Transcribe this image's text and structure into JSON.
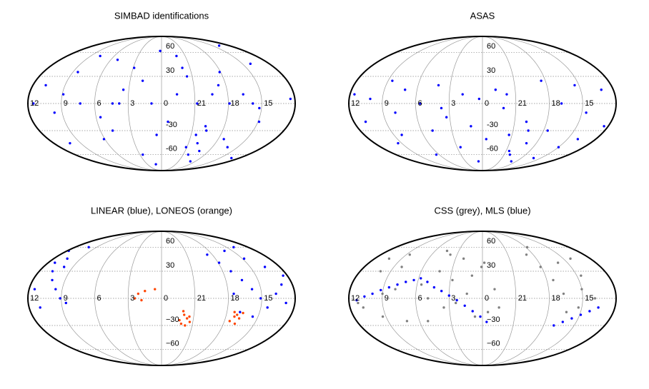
{
  "chart_data": [
    {
      "type": "scatter",
      "projection": "mollweide",
      "title": "SIMBAD identifications",
      "xticks": [
        12,
        9,
        6,
        3,
        0,
        21,
        18,
        15
      ],
      "yticks": [
        60,
        30,
        {
          "value": -30,
          "label": "-30"
        },
        {
          "value": -60,
          "label": "-60"
        }
      ],
      "series": [
        {
          "color": "#0000ff",
          "x": [
            11.5,
            10.8,
            9.7,
            8.5,
            7.3,
            6.1,
            5.2,
            4.4,
            3.5,
            2.6,
            1.8,
            0.9,
            0.2,
            23.4,
            22.6,
            21.8,
            21.1,
            20.5,
            20.0,
            19.6,
            19.2,
            18.7,
            18.1,
            17.4,
            16.6,
            15.8,
            14.9,
            14.1,
            13.2,
            12.4,
            20.3,
            19.8,
            19.4,
            20.8,
            21.5,
            18.9,
            17.9,
            16.2,
            1.2,
            4.8,
            7.8,
            10.2,
            2.9,
            5.6,
            8.9,
            3.8,
            0.5,
            22.1,
            13.8,
            15.2
          ],
          "values": [
            0,
            20,
            -10,
            35,
            0,
            -40,
            50,
            0,
            15,
            -60,
            25,
            0,
            62,
            -20,
            10,
            40,
            -50,
            -35,
            -45,
            -30,
            -55,
            20,
            35,
            -40,
            10,
            0,
            -20,
            45,
            -65,
            5,
            -60,
            -25,
            10,
            0,
            30,
            -70,
            0,
            -50,
            -75,
            -30,
            55,
            -45,
            40,
            -15,
            10,
            0,
            -35,
            55,
            70,
            -5
          ]
        }
      ]
    },
    {
      "type": "scatter",
      "projection": "mollweide",
      "title": "ASAS",
      "xticks": [
        12,
        9,
        6,
        3,
        0,
        21,
        18,
        15
      ],
      "yticks": [
        60,
        30,
        {
          "value": -30,
          "label": "-30"
        },
        {
          "value": -60,
          "label": "-60"
        }
      ],
      "series": [
        {
          "color": "#0000ff",
          "x": [
            11.6,
            10.9,
            10.1,
            9.4,
            8.6,
            7.9,
            7.1,
            6.4,
            5.6,
            4.9,
            4.1,
            3.3,
            2.6,
            1.8,
            1.1,
            0.3,
            23.6,
            22.8,
            22.1,
            21.3,
            20.6,
            19.9,
            19.1,
            18.4,
            17.6,
            16.9,
            16.1,
            15.4,
            14.6,
            13.9,
            13.1,
            12.4,
            20.2,
            19.5,
            18.9,
            21.8,
            3.7,
            8.2,
            15.0,
            0.7
          ],
          "values": [
            10,
            -20,
            5,
            -45,
            25,
            -10,
            15,
            -60,
            0,
            -30,
            20,
            -15,
            -50,
            10,
            -25,
            5,
            -40,
            15,
            -5,
            -35,
            -55,
            -20,
            -45,
            25,
            -30,
            0,
            -65,
            20,
            -10,
            -40,
            15,
            -25,
            -60,
            -30,
            -70,
            10,
            -5,
            -35,
            -50,
            -70
          ]
        }
      ]
    },
    {
      "type": "scatter",
      "projection": "mollweide",
      "title": "LINEAR (blue), LONEOS (orange)",
      "xticks": [
        12,
        9,
        6,
        3,
        0,
        21,
        18,
        15
      ],
      "yticks": [
        60,
        30,
        {
          "value": -30,
          "label": "−30"
        },
        {
          "value": -60,
          "label": "−60"
        }
      ],
      "series": [
        {
          "color": "#0000ff",
          "x": [
            11.8,
            11.3,
            10.7,
            10.2,
            9.6,
            9.1,
            8.6,
            11.5,
            10.5,
            9.9,
            11.0,
            10.1,
            18.6,
            17.9,
            17.2,
            16.5,
            15.8,
            15.1,
            14.4,
            13.7,
            13.0,
            12.4,
            16.0,
            14.8,
            13.5,
            17.5,
            15.5,
            14.0,
            12.8,
            16.8
          ],
          "values": [
            55,
            40,
            30,
            20,
            10,
            0,
            -5,
            10,
            45,
            35,
            -10,
            60,
            50,
            40,
            30,
            20,
            10,
            0,
            -10,
            5,
            15,
            25,
            55,
            45,
            35,
            5,
            -20,
            60,
            -5,
            -15
          ]
        },
        {
          "color": "#ff4500",
          "x": [
            2.1,
            1.8,
            1.5,
            0.6,
            21.9,
            21.6,
            21.3,
            22.1,
            21.7,
            21.4,
            22.3,
            17.3,
            17.0,
            16.7,
            17.5,
            16.9,
            17.2,
            16.5,
            2.4,
            22.0
          ],
          "values": [
            5,
            -2,
            8,
            10,
            -18,
            -22,
            -26,
            -28,
            -30,
            -20,
            -24,
            -15,
            -18,
            -22,
            -25,
            -28,
            -20,
            -16,
            0,
            -14
          ]
        }
      ]
    },
    {
      "type": "scatter",
      "projection": "mollweide",
      "title": "CSS (grey), MLS (blue)",
      "xticks": [
        12,
        9,
        6,
        3,
        0,
        21,
        18,
        15
      ],
      "yticks": [
        60,
        30,
        {
          "value": -30,
          "label": "−30"
        },
        {
          "value": -60,
          "label": "−60"
        }
      ],
      "series": [
        {
          "color": "#808080",
          "x": [
            10.8,
            10.0,
            9.3,
            8.6,
            7.9,
            7.2,
            10.4,
            9.0,
            8.2,
            11.2,
            5.6,
            4.9,
            4.2,
            3.5,
            2.8,
            2.1,
            1.4,
            0.7,
            0.1,
            23.5,
            22.9,
            5.2,
            3.8,
            2.4,
            1.0,
            23.8,
            22.5,
            4.5,
            18.8,
            18.1,
            17.4,
            16.7,
            16.0,
            15.3,
            14.6,
            13.9,
            17.8,
            16.3,
            15.0,
            14.2
          ],
          "values": [
            -10,
            30,
            -20,
            50,
            10,
            -25,
            45,
            5,
            35,
            -5,
            15,
            0,
            30,
            -10,
            20,
            45,
            5,
            -20,
            35,
            -15,
            10,
            -25,
            50,
            -5,
            25,
            40,
            -10,
            55,
            50,
            35,
            20,
            5,
            40,
            -10,
            25,
            0,
            60,
            -15,
            10,
            45
          ]
        },
        {
          "color": "#0000ff",
          "x": [
            11.3,
            10.6,
            9.9,
            9.2,
            8.5,
            7.8,
            7.1,
            6.4,
            5.8,
            5.1,
            4.4,
            3.7,
            3.0,
            2.3,
            1.6,
            0.9,
            0.2,
            23.6,
            17.0,
            16.3,
            15.6,
            14.9,
            14.2,
            13.5
          ],
          "values": [
            -2,
            2,
            5,
            9,
            12,
            15,
            18,
            20,
            22,
            18,
            12,
            8,
            3,
            -2,
            -8,
            -14,
            -20,
            -26,
            -30,
            -26,
            -22,
            -18,
            -14,
            -10
          ]
        }
      ]
    }
  ]
}
